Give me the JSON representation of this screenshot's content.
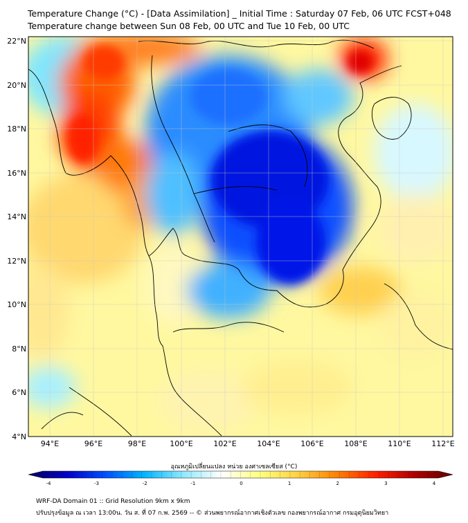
{
  "title_line1": "Temperature Change (°C) - [Data Assimilation] _ Initial Time : Saturday 07 Feb, 06 UTC FCST+048",
  "title_line2": "Temperature change between Sun 08 Feb, 00 UTC and Tue 10 Feb, 00 UTC",
  "lat_labels": [
    "22°N",
    "20°N",
    "18°N",
    "16°N",
    "14°N",
    "12°N",
    "10°N",
    "8°N",
    "6°N",
    "4°N"
  ],
  "lon_labels": [
    "94°E",
    "96°E",
    "98°E",
    "100°E",
    "102°E",
    "104°E",
    "106°E",
    "108°E",
    "110°E",
    "112°E"
  ],
  "colorbar": {
    "title": "อุณหภูมิเปลี่ยนแปลง หน่วย องศาเซลเซียส (°C)",
    "ticks": [
      "-4",
      "-3",
      "-2",
      "-1",
      "0",
      "1",
      "2",
      "3",
      "4"
    ],
    "min": -4,
    "max": 4,
    "colors": [
      "#08005a",
      "#0000c8",
      "#0050ff",
      "#00b4ff",
      "#8ee8ff",
      "#ffffff",
      "#ffff80",
      "#ffd040",
      "#ff8000",
      "#ff2000",
      "#b00000",
      "#600000"
    ]
  },
  "footer_line1": "WRF-DA Domain 01 :: Grid Resolution 9km x 9km",
  "footer_line2": "ปรับปรุงข้อมูล ณ เวลา 13:00น. วัน ส. ที่ 07 ก.พ. 2569 -- © ส่วนพยากรณ์อากาศเชิงตัวเลข กองพยากรณ์อากาศ กรมอุตุนิยมวิทยา"
}
